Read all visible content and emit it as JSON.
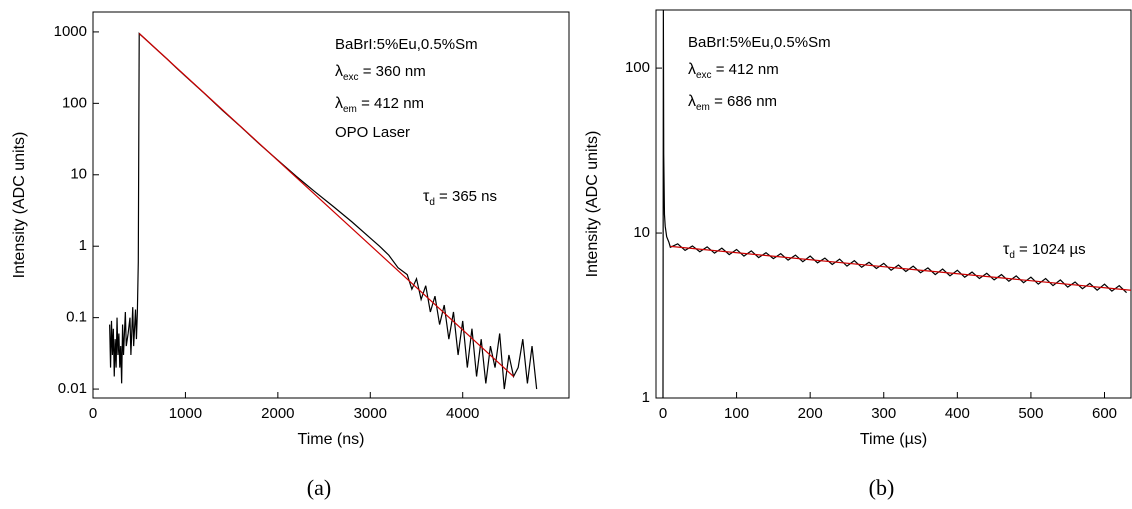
{
  "chart_data": [
    {
      "type": "line",
      "yscale": "log",
      "xlabel": "Time (ns)",
      "ylabel": "Intensity (ADC units)",
      "caption": "(a)",
      "xlim": [
        0,
        5150
      ],
      "xticks": [
        0,
        1000,
        2000,
        3000,
        4000
      ],
      "ylim": [
        0.0075,
        1900
      ],
      "yticks": [
        0.01,
        0.1,
        1,
        10,
        100,
        1000
      ],
      "annotations": [
        {
          "text": "BaBrI:5%Eu,0.5%Sm"
        },
        {
          "symbol": "λ",
          "sub": "exc",
          "text": " = 360 nm"
        },
        {
          "symbol": "λ",
          "sub": "em",
          "text": " = 412 nm"
        },
        {
          "text": "OPO Laser"
        },
        {
          "symbol": "τ",
          "sub": "d",
          "text": " = 365 ns"
        }
      ],
      "series": [
        {
          "color": "#000000",
          "x": [
            180,
            190,
            200,
            210,
            220,
            230,
            240,
            250,
            260,
            270,
            280,
            290,
            300,
            310,
            320,
            330,
            350,
            360,
            380,
            400,
            410,
            430,
            440,
            460,
            470,
            480,
            490,
            500,
            600,
            700,
            800,
            900,
            1000,
            1200,
            1400,
            1600,
            1800,
            2000,
            2200,
            2400,
            2600,
            2800,
            3000,
            3100,
            3200,
            3300,
            3400,
            3450,
            3500,
            3550,
            3600,
            3650,
            3700,
            3750,
            3800,
            3850,
            3900,
            3950,
            4000,
            4050,
            4100,
            4150,
            4200,
            4250,
            4300,
            4350,
            4400,
            4450,
            4500,
            4550,
            4600,
            4650,
            4700,
            4750,
            4800
          ],
          "values": [
            0.08,
            0.02,
            0.09,
            0.03,
            0.07,
            0.015,
            0.05,
            0.02,
            0.1,
            0.03,
            0.06,
            0.02,
            0.04,
            0.012,
            0.08,
            0.03,
            0.12,
            0.04,
            0.06,
            0.1,
            0.03,
            0.14,
            0.04,
            0.13,
            0.05,
            0.12,
            0.6,
            950,
            725,
            550,
            420,
            315,
            240,
            140,
            80,
            47,
            27,
            16,
            9.5,
            5.8,
            3.6,
            2.2,
            1.3,
            1.0,
            0.75,
            0.5,
            0.4,
            0.25,
            0.35,
            0.18,
            0.28,
            0.12,
            0.2,
            0.08,
            0.15,
            0.05,
            0.12,
            0.03,
            0.09,
            0.02,
            0.07,
            0.015,
            0.05,
            0.012,
            0.04,
            0.02,
            0.06,
            0.01,
            0.03,
            0.015,
            0.02,
            0.05,
            0.012,
            0.04,
            0.01
          ]
        },
        {
          "color": "#cc0000",
          "x": [
            500,
            4550
          ],
          "values": [
            950,
            0.015
          ]
        }
      ]
    },
    {
      "type": "line",
      "yscale": "log",
      "xlabel": "Time (µs)",
      "ylabel": "Intensity (ADC units)",
      "caption": "(b)",
      "xlim": [
        -9.5,
        636
      ],
      "xticks": [
        0,
        100,
        200,
        300,
        400,
        500,
        600
      ],
      "ylim": [
        1,
        225
      ],
      "yticks": [
        1,
        10,
        100
      ],
      "annotations": [
        {
          "text": "BaBrI:5%Eu,0.5%Sm"
        },
        {
          "symbol": "λ",
          "sub": "exc",
          "text": " = 412 nm"
        },
        {
          "symbol": "λ",
          "sub": "em",
          "text": " = 686 nm"
        },
        {
          "symbol": "τ",
          "sub": "d",
          "text": " = 1024 µs"
        }
      ],
      "series": [
        {
          "color": "#000000",
          "x": [
            0,
            0.5,
            1,
            2,
            3,
            5,
            8,
            10,
            20,
            30,
            40,
            50,
            60,
            70,
            80,
            90,
            100,
            110,
            120,
            130,
            140,
            150,
            160,
            170,
            180,
            190,
            200,
            210,
            220,
            230,
            240,
            250,
            260,
            270,
            280,
            290,
            300,
            310,
            320,
            330,
            340,
            350,
            360,
            370,
            380,
            390,
            400,
            410,
            420,
            430,
            440,
            450,
            460,
            470,
            480,
            490,
            500,
            510,
            520,
            530,
            540,
            550,
            560,
            570,
            580,
            590,
            600,
            610,
            620,
            630
          ],
          "values": [
            1,
            225,
            30,
            13,
            11,
            9.5,
            8.8,
            8.2,
            8.6,
            7.85,
            8.35,
            7.7,
            8.25,
            7.55,
            8.1,
            7.4,
            7.95,
            7.25,
            7.8,
            7.1,
            7.6,
            7.0,
            7.5,
            6.85,
            7.35,
            6.7,
            7.25,
            6.6,
            7.05,
            6.45,
            6.95,
            6.3,
            6.8,
            6.2,
            6.65,
            6.1,
            6.55,
            5.95,
            6.4,
            5.85,
            6.3,
            5.75,
            6.15,
            5.6,
            6.05,
            5.5,
            5.95,
            5.4,
            5.8,
            5.3,
            5.7,
            5.2,
            5.6,
            5.1,
            5.5,
            5.0,
            5.4,
            4.9,
            5.3,
            4.8,
            5.2,
            4.7,
            5.05,
            4.6,
            4.95,
            4.5,
            4.9,
            4.45,
            4.8,
            4.35
          ]
        },
        {
          "color": "#cc0000",
          "x": [
            10,
            636
          ],
          "values": [
            8.3,
            4.5
          ]
        }
      ]
    }
  ]
}
